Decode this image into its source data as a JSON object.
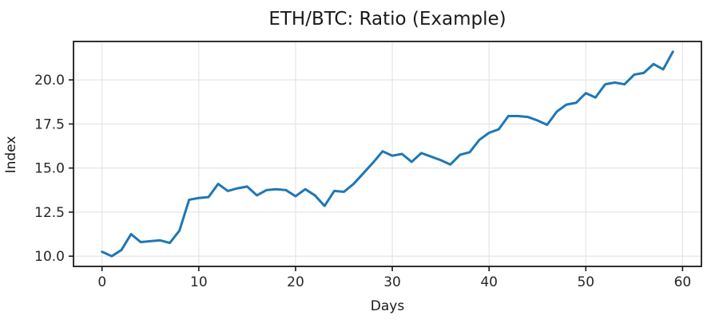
{
  "chart_data": {
    "type": "line",
    "title": "ETH/BTC: Ratio (Example)",
    "xlabel": "Days",
    "ylabel": "Index",
    "x": [
      0,
      1,
      2,
      3,
      4,
      5,
      6,
      7,
      8,
      9,
      10,
      11,
      12,
      13,
      14,
      15,
      16,
      17,
      18,
      19,
      20,
      21,
      22,
      23,
      24,
      25,
      26,
      27,
      28,
      29,
      30,
      31,
      32,
      33,
      34,
      35,
      36,
      37,
      38,
      39,
      40,
      41,
      42,
      43,
      44,
      45,
      46,
      47,
      48,
      49,
      50,
      51,
      52,
      53,
      54,
      55,
      56,
      57,
      58,
      59
    ],
    "values": [
      10.25,
      10.0,
      10.35,
      11.25,
      10.8,
      10.85,
      10.9,
      10.75,
      11.45,
      13.2,
      13.3,
      13.35,
      14.1,
      13.7,
      13.85,
      13.95,
      13.45,
      13.75,
      13.8,
      13.75,
      13.4,
      13.8,
      13.45,
      12.85,
      13.7,
      13.65,
      14.1,
      14.7,
      15.3,
      15.95,
      15.7,
      15.8,
      15.35,
      15.85,
      15.65,
      15.45,
      15.2,
      15.75,
      15.9,
      16.6,
      17.0,
      17.2,
      17.95,
      17.95,
      17.9,
      17.7,
      17.45,
      18.2,
      18.6,
      18.7,
      19.25,
      19.0,
      19.75,
      19.85,
      19.75,
      20.3,
      20.4,
      20.9,
      20.6,
      21.6
    ],
    "xlim": [
      -2.95,
      61.95
    ],
    "ylim": [
      9.42,
      22.18
    ],
    "xticks": {
      "values": [
        0,
        10,
        20,
        30,
        40,
        50,
        60
      ],
      "labels": [
        "0",
        "10",
        "20",
        "30",
        "40",
        "50",
        "60"
      ]
    },
    "yticks": {
      "values": [
        10.0,
        12.5,
        15.0,
        17.5,
        20.0
      ],
      "labels": [
        "10.0",
        "12.5",
        "15.0",
        "17.5",
        "20.0"
      ]
    },
    "grid": true,
    "legend_position": "none",
    "line_color": "#1f77b4",
    "line_width": 3,
    "grid_color": "#e3e3e3",
    "axis_color": "#1a1a1a",
    "tick_label_color": "#262626",
    "background": "#ffffff"
  }
}
